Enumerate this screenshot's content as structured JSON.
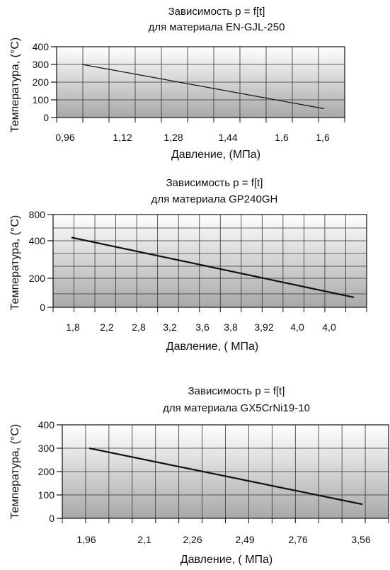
{
  "chart_data": [
    {
      "type": "line",
      "title": [
        "Зависимость p = f[t]",
        "для материала EN-GJL-250"
      ],
      "xlabel": "Давление, (МПа)",
      "ylabel": "Температура, (°C)",
      "categories": [
        "0,96",
        "1,12",
        "1,28",
        "1,44",
        "1,6",
        "1,6"
      ],
      "y_ticks": [
        "0",
        "100",
        "200",
        "300",
        "400"
      ],
      "ylim": [
        0,
        400
      ],
      "grid": true,
      "line_start": 300,
      "line_end": 50
    },
    {
      "type": "line",
      "title": [
        "Зависимость p = f[t]",
        "для материала GP240GH"
      ],
      "xlabel": "Давление, ( МПа)",
      "ylabel": "Температура, (°C)",
      "categories": [
        "1,8",
        "2,2",
        "2,8",
        "3,2",
        "3,6",
        "3,8",
        "3,92",
        "4,0",
        "4,0"
      ],
      "y_ticks": [
        "0",
        "200",
        "400",
        "800"
      ],
      "grid": true,
      "line_start": 450,
      "line_end": 60
    },
    {
      "type": "line",
      "title": [
        "Зависимость p = f[t]",
        "для материала GX5CrNi19-10"
      ],
      "xlabel": "Давление, ( МПа)",
      "ylabel": "Температура, (°C)",
      "categories": [
        "1,96",
        "2,1",
        "2,26",
        "2,49",
        "2,76",
        "3,56"
      ],
      "y_ticks": [
        "0",
        "100",
        "200",
        "300",
        "400"
      ],
      "ylim": [
        0,
        400
      ],
      "grid": true,
      "line_start": 300,
      "line_end": 60
    }
  ]
}
